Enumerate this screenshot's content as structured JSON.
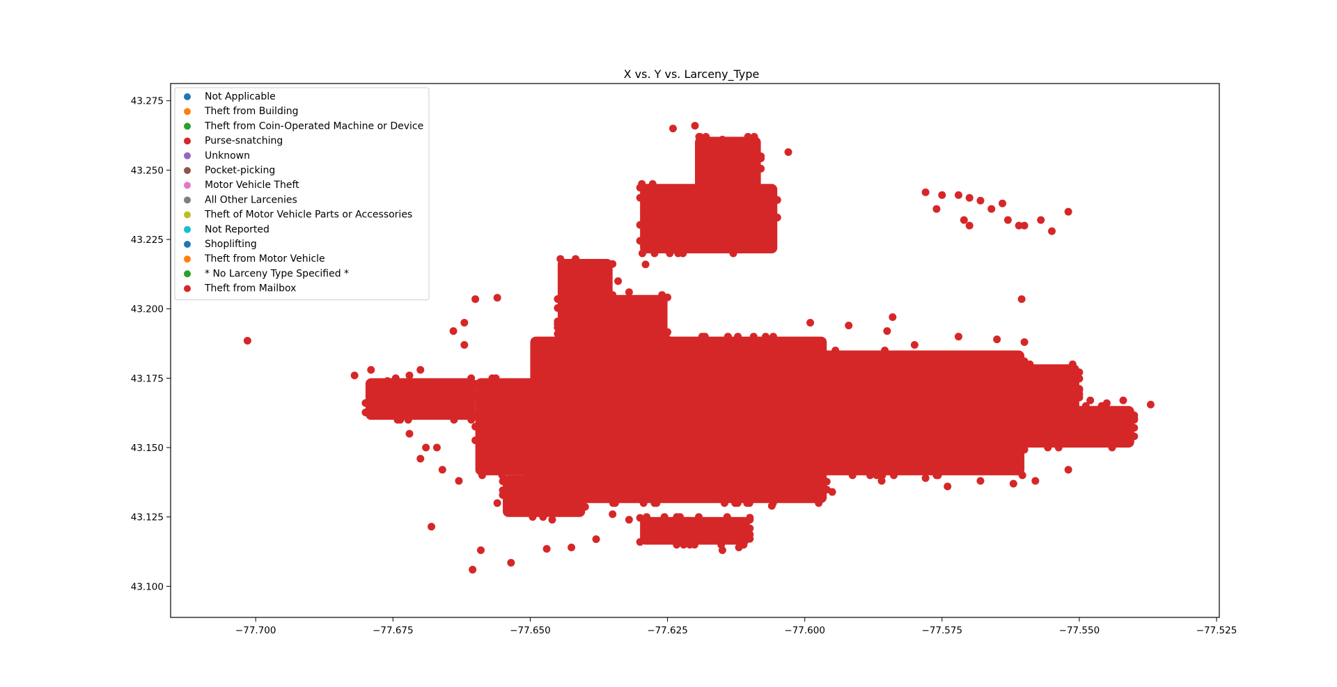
{
  "chart_data": {
    "type": "scatter",
    "title": "X vs. Y vs. Larceny_Type",
    "xlabel": "",
    "ylabel": "",
    "xlim": [
      -77.7155,
      -77.5245
    ],
    "ylim": [
      43.0888,
      43.2812
    ],
    "x_ticks": [
      -77.7,
      -77.675,
      -77.65,
      -77.625,
      -77.6,
      -77.575,
      -77.55,
      -77.525
    ],
    "x_tick_labels": [
      "−77.700",
      "−77.675",
      "−77.650",
      "−77.625",
      "−77.600",
      "−77.575",
      "−77.550",
      "−77.525"
    ],
    "y_ticks": [
      43.1,
      43.125,
      43.15,
      43.175,
      43.2,
      43.225,
      43.25,
      43.275
    ],
    "y_tick_labels": [
      "43.100",
      "43.125",
      "43.150",
      "43.175",
      "43.200",
      "43.225",
      "43.250",
      "43.275"
    ],
    "grid": false,
    "legend_position": "upper-left",
    "series": [
      {
        "name": "Not Applicable",
        "color": "#1f77b4"
      },
      {
        "name": "Theft from Building",
        "color": "#ff7f0e"
      },
      {
        "name": "Theft from Coin-Operated Machine or Device",
        "color": "#2ca02c"
      },
      {
        "name": "Purse-snatching",
        "color": "#d62728"
      },
      {
        "name": "Unknown",
        "color": "#9467bd"
      },
      {
        "name": "Pocket-picking",
        "color": "#8c564b"
      },
      {
        "name": "Motor Vehicle Theft",
        "color": "#e377c2"
      },
      {
        "name": "All Other Larcenies",
        "color": "#7f7f7f"
      },
      {
        "name": "Theft of Motor Vehicle Parts or Accessories",
        "color": "#bcbd22"
      },
      {
        "name": "Not Reported",
        "color": "#17becf"
      },
      {
        "name": "Shoplifting",
        "color": "#1f77b4"
      },
      {
        "name": "Theft from Motor Vehicle",
        "color": "#ff7f0e"
      },
      {
        "name": "* No Larceny Type Specified *",
        "color": "#2ca02c"
      },
      {
        "name": "Theft from Mailbox",
        "color": "#d62728"
      }
    ],
    "dense_regions": [
      {
        "x": [
          -77.65,
          -77.596
        ],
        "y": [
          43.13,
          43.19
        ]
      },
      {
        "x": [
          -77.64,
          -77.56
        ],
        "y": [
          43.14,
          43.185
        ]
      },
      {
        "x": [
          -77.6,
          -77.55
        ],
        "y": [
          43.15,
          43.18
        ]
      },
      {
        "x": [
          -77.56,
          -77.54
        ],
        "y": [
          43.15,
          43.165
        ]
      },
      {
        "x": [
          -77.66,
          -77.64
        ],
        "y": [
          43.14,
          43.175
        ]
      },
      {
        "x": [
          -77.645,
          -77.625
        ],
        "y": [
          43.185,
          43.205
        ]
      },
      {
        "x": [
          -77.645,
          -77.635
        ],
        "y": [
          43.2,
          43.218
        ]
      },
      {
        "x": [
          -77.63,
          -77.62
        ],
        "y": [
          43.115,
          43.125
        ]
      },
      {
        "x": [
          -77.625,
          -77.61
        ],
        "y": [
          43.115,
          43.125
        ]
      },
      {
        "x": [
          -77.63,
          -77.605
        ],
        "y": [
          43.22,
          43.245
        ]
      },
      {
        "x": [
          -77.62,
          -77.608
        ],
        "y": [
          43.24,
          43.262
        ]
      },
      {
        "x": [
          -77.655,
          -77.64
        ],
        "y": [
          43.125,
          43.14
        ]
      },
      {
        "x": [
          -77.68,
          -77.66
        ],
        "y": [
          43.16,
          43.175
        ]
      }
    ],
    "points": [
      {
        "x": -77.7015,
        "y": 43.1885
      },
      {
        "x": -77.682,
        "y": 43.176
      },
      {
        "x": -77.679,
        "y": 43.178
      },
      {
        "x": -77.676,
        "y": 43.174
      },
      {
        "x": -77.675,
        "y": 43.165
      },
      {
        "x": -77.669,
        "y": 43.15
      },
      {
        "x": -77.667,
        "y": 43.15
      },
      {
        "x": -77.668,
        "y": 43.1215
      },
      {
        "x": -77.659,
        "y": 43.113
      },
      {
        "x": -77.6605,
        "y": 43.106
      },
      {
        "x": -77.6535,
        "y": 43.1085
      },
      {
        "x": -77.647,
        "y": 43.1135
      },
      {
        "x": -77.6425,
        "y": 43.114
      },
      {
        "x": -77.638,
        "y": 43.117
      },
      {
        "x": -77.63,
        "y": 43.116
      },
      {
        "x": -77.615,
        "y": 43.113
      },
      {
        "x": -77.612,
        "y": 43.114
      },
      {
        "x": -77.603,
        "y": 43.2565
      },
      {
        "x": -77.608,
        "y": 43.255
      },
      {
        "x": -77.624,
        "y": 43.265
      },
      {
        "x": -77.62,
        "y": 43.266
      },
      {
        "x": -77.618,
        "y": 43.262
      },
      {
        "x": -77.615,
        "y": 43.261
      },
      {
        "x": -77.6195,
        "y": 43.229
      },
      {
        "x": -77.66,
        "y": 43.2035
      },
      {
        "x": -77.656,
        "y": 43.204
      },
      {
        "x": -77.632,
        "y": 43.206
      },
      {
        "x": -77.626,
        "y": 43.205
      },
      {
        "x": -77.634,
        "y": 43.21
      },
      {
        "x": -77.629,
        "y": 43.216
      },
      {
        "x": -77.599,
        "y": 43.195
      },
      {
        "x": -77.592,
        "y": 43.194
      },
      {
        "x": -77.585,
        "y": 43.192
      },
      {
        "x": -77.58,
        "y": 43.187
      },
      {
        "x": -77.56,
        "y": 43.188
      },
      {
        "x": -77.556,
        "y": 43.176
      },
      {
        "x": -77.553,
        "y": 43.176
      },
      {
        "x": -77.537,
        "y": 43.1655
      },
      {
        "x": -77.54,
        "y": 43.16
      },
      {
        "x": -77.544,
        "y": 43.152
      },
      {
        "x": -77.552,
        "y": 43.142
      },
      {
        "x": -77.558,
        "y": 43.138
      },
      {
        "x": -77.562,
        "y": 43.137
      },
      {
        "x": -77.568,
        "y": 43.138
      },
      {
        "x": -77.574,
        "y": 43.136
      },
      {
        "x": -77.578,
        "y": 43.139
      },
      {
        "x": -77.586,
        "y": 43.138
      },
      {
        "x": -77.595,
        "y": 43.134
      },
      {
        "x": -77.606,
        "y": 43.129
      },
      {
        "x": -77.61,
        "y": 43.124
      },
      {
        "x": -77.578,
        "y": 43.242
      },
      {
        "x": -77.575,
        "y": 43.241
      },
      {
        "x": -77.572,
        "y": 43.241
      },
      {
        "x": -77.57,
        "y": 43.24
      },
      {
        "x": -77.568,
        "y": 43.239
      },
      {
        "x": -77.576,
        "y": 43.236
      },
      {
        "x": -77.571,
        "y": 43.232
      },
      {
        "x": -77.57,
        "y": 43.23
      },
      {
        "x": -77.566,
        "y": 43.236
      },
      {
        "x": -77.564,
        "y": 43.238
      },
      {
        "x": -77.563,
        "y": 43.232
      },
      {
        "x": -77.561,
        "y": 43.23
      },
      {
        "x": -77.56,
        "y": 43.23
      },
      {
        "x": -77.557,
        "y": 43.232
      },
      {
        "x": -77.555,
        "y": 43.228
      },
      {
        "x": -77.552,
        "y": 43.235
      },
      {
        "x": -77.5605,
        "y": 43.2035
      },
      {
        "x": -77.662,
        "y": 43.195
      },
      {
        "x": -77.664,
        "y": 43.192
      },
      {
        "x": -77.662,
        "y": 43.187
      },
      {
        "x": -77.67,
        "y": 43.178
      },
      {
        "x": -77.672,
        "y": 43.176
      },
      {
        "x": -77.678,
        "y": 43.172
      },
      {
        "x": -77.673,
        "y": 43.168
      },
      {
        "x": -77.676,
        "y": 43.164
      },
      {
        "x": -77.67,
        "y": 43.163
      },
      {
        "x": -77.672,
        "y": 43.155
      },
      {
        "x": -77.67,
        "y": 43.146
      },
      {
        "x": -77.666,
        "y": 43.142
      },
      {
        "x": -77.663,
        "y": 43.138
      },
      {
        "x": -77.656,
        "y": 43.13
      },
      {
        "x": -77.652,
        "y": 43.127
      },
      {
        "x": -77.646,
        "y": 43.124
      },
      {
        "x": -77.635,
        "y": 43.126
      },
      {
        "x": -77.632,
        "y": 43.124
      },
      {
        "x": -77.627,
        "y": 43.13
      },
      {
        "x": -77.625,
        "y": 43.135
      },
      {
        "x": -77.584,
        "y": 43.197
      },
      {
        "x": -77.572,
        "y": 43.19
      },
      {
        "x": -77.565,
        "y": 43.189
      },
      {
        "x": -77.559,
        "y": 43.18
      },
      {
        "x": -77.548,
        "y": 43.167
      },
      {
        "x": -77.545,
        "y": 43.166
      },
      {
        "x": -77.542,
        "y": 43.167
      }
    ]
  }
}
